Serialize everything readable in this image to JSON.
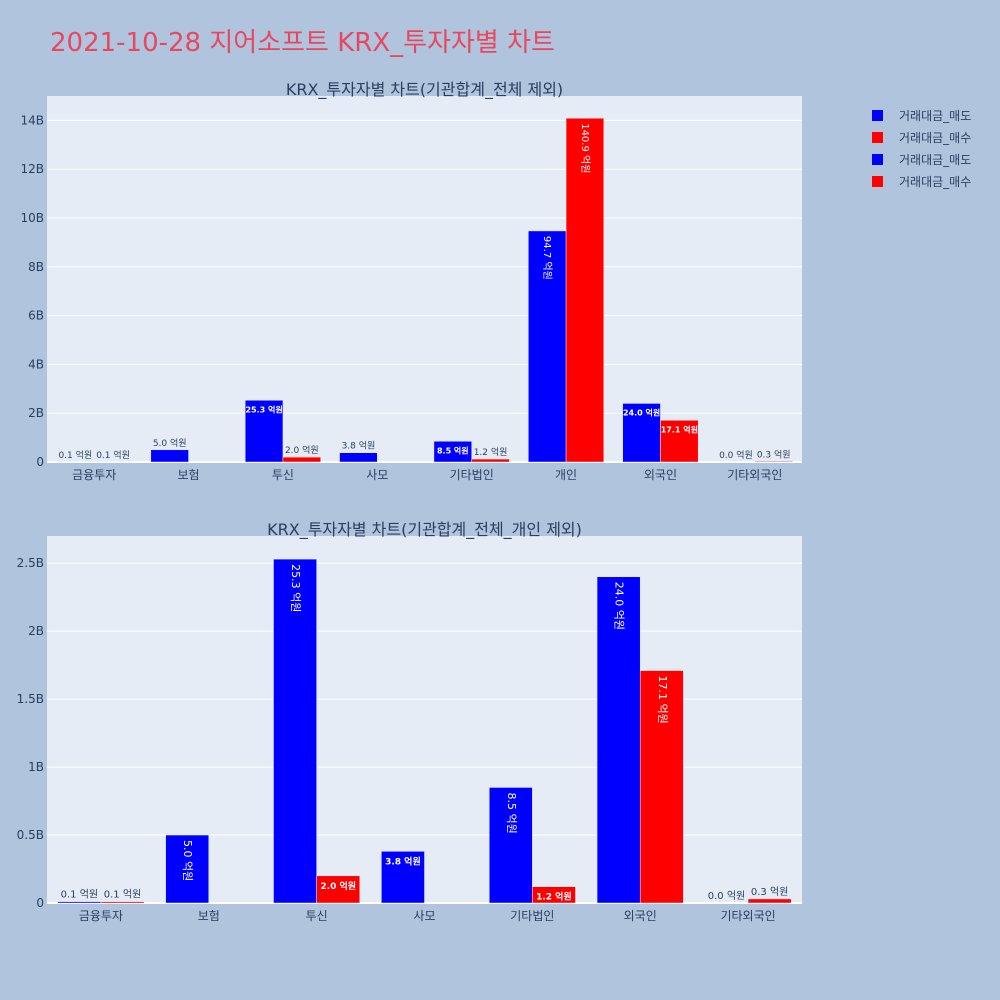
{
  "page_title": "2021-10-28 지어소프트 KRX_투자자별 차트",
  "colors": {
    "sell": "#0000ff",
    "buy": "#ff0000",
    "background": "#b0c4de",
    "plot_bg": "#e5ecf6",
    "text": "#2a3f5f"
  },
  "legend": [
    {
      "label": "거래대금_매도",
      "color": "#0000ff"
    },
    {
      "label": "거래대금_매수",
      "color": "#ff0000"
    },
    {
      "label": "거래대금_매도",
      "color": "#0000ff"
    },
    {
      "label": "거래대금_매수",
      "color": "#ff0000"
    }
  ],
  "chart_data": [
    {
      "type": "bar",
      "title": "KRX_투자자별 차트(기관합계_전체 제외)",
      "categories": [
        "금융투자",
        "보험",
        "투신",
        "사모",
        "기타법인",
        "개인",
        "외국인",
        "기타외국인"
      ],
      "series": [
        {
          "name": "거래대금_매도",
          "color": "#0000ff",
          "values": [
            10000000,
            500000000,
            2530000000,
            380000000,
            850000000,
            9470000000,
            2400000000,
            0
          ],
          "labels": [
            "0.1 억원",
            "5.0 억원",
            "25.3 억원",
            "3.8 억원",
            "8.5 억원",
            "94.7 억원",
            "24.0 억원",
            "0.0 억원"
          ]
        },
        {
          "name": "거래대금_매수",
          "color": "#ff0000",
          "values": [
            10000000,
            0,
            200000000,
            0,
            120000000,
            14090000000,
            1710000000,
            30000000
          ],
          "labels": [
            "0.1 억원",
            "",
            "2.0 억원",
            "",
            "1.2 억원",
            "140.9 억원",
            "17.1 억원",
            "0.3 억원"
          ]
        }
      ],
      "ylim": [
        0,
        15000000000
      ],
      "yticks": [
        0,
        2000000000,
        4000000000,
        6000000000,
        8000000000,
        10000000000,
        12000000000,
        14000000000
      ],
      "ytick_labels": [
        "0",
        "2B",
        "4B",
        "6B",
        "8B",
        "10B",
        "12B",
        "14B"
      ],
      "grid": true
    },
    {
      "type": "bar",
      "title": "KRX_투자자별 차트(기관합계_전체_개인 제외)",
      "categories": [
        "금융투자",
        "보험",
        "투신",
        "사모",
        "기타법인",
        "외국인",
        "기타외국인"
      ],
      "series": [
        {
          "name": "거래대금_매도",
          "color": "#0000ff",
          "values": [
            10000000,
            500000000,
            2530000000,
            380000000,
            850000000,
            2400000000,
            0
          ],
          "labels": [
            "0.1 억원",
            "5.0 억원",
            "25.3 억원",
            "3.8 억원",
            "8.5 억원",
            "24.0 억원",
            "0.0 억원"
          ]
        },
        {
          "name": "거래대금_매수",
          "color": "#ff0000",
          "values": [
            10000000,
            0,
            200000000,
            0,
            120000000,
            1710000000,
            30000000
          ],
          "labels": [
            "0.1 억원",
            "",
            "2.0 억원",
            "",
            "1.2 억원",
            "17.1 억원",
            "0.3 억원"
          ]
        }
      ],
      "ylim": [
        0,
        2700000000
      ],
      "yticks": [
        0,
        500000000,
        1000000000,
        1500000000,
        2000000000,
        2500000000
      ],
      "ytick_labels": [
        "0",
        "0.5B",
        "1B",
        "1.5B",
        "2B",
        "2.5B"
      ],
      "grid": true
    }
  ]
}
